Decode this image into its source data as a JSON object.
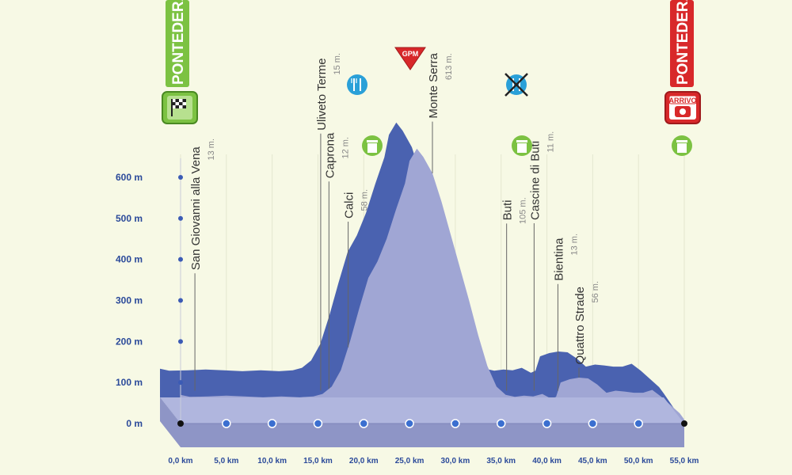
{
  "chart_data": {
    "type": "area",
    "title": "",
    "xlabel": "",
    "ylabel": "",
    "xlim": [
      0,
      55
    ],
    "ylim": [
      0,
      600
    ],
    "x_tick_labels": [
      "0,0 km",
      "5,0 km",
      "10,0 km",
      "15,0 km",
      "20,0 km",
      "25,0 km",
      "30,0 km",
      "35,0 km",
      "40,0 km",
      "45,0 km",
      "50,0 km",
      "55,0 km"
    ],
    "y_tick_labels": [
      "0 m",
      "100 m",
      "200 m",
      "300 m",
      "400 m",
      "500 m",
      "600 m"
    ],
    "y_tick_values": [
      0,
      100,
      200,
      300,
      400,
      500,
      600
    ],
    "x_tick_values": [
      0,
      5,
      10,
      15,
      20,
      25,
      30,
      35,
      40,
      45,
      50,
      55
    ],
    "series": [
      {
        "x": [
          0,
          1,
          3,
          5,
          7,
          9,
          11,
          13,
          14.5,
          15.5,
          16.5,
          17.5,
          18.5,
          19.5,
          20.5,
          21.5,
          22.5,
          23.5,
          24.5,
          25,
          25.8,
          26.5,
          27.5,
          28.5,
          29.5,
          30.5,
          31.5,
          32.5,
          33.5,
          34.5,
          35.5,
          36.5,
          37.5,
          38.5,
          39.5,
          40.5,
          41,
          41.5,
          42.5,
          43.5,
          44.5,
          45.5,
          46.5,
          47.5,
          48.5,
          49.5,
          50.5,
          51.5,
          52.5,
          53.5,
          54.5,
          55
        ],
        "y": [
          70,
          65,
          66,
          68,
          66,
          64,
          66,
          64,
          66,
          72,
          90,
          130,
          200,
          280,
          355,
          395,
          450,
          520,
          585,
          640,
          670,
          650,
          610,
          540,
          460,
          380,
          300,
          215,
          140,
          90,
          70,
          65,
          68,
          66,
          72,
          60,
          65,
          100,
          108,
          112,
          110,
          95,
          75,
          80,
          78,
          75,
          75,
          82,
          65,
          45,
          25,
          10
        ]
      }
    ],
    "places": [
      {
        "name": "San Giovanni alla Vena",
        "alt": "13 m.",
        "km": 0.7
      },
      {
        "name": "Uliveto Terme",
        "alt": "15 m.",
        "km": 15.3
      },
      {
        "name": "Caprona",
        "alt": "12 m.",
        "km": 16.2
      },
      {
        "name": "Calci",
        "alt": "58 m.",
        "km": 18.3
      },
      {
        "name": "Monte Serra",
        "alt": "613 m.",
        "km": 27.5
      },
      {
        "name": "Buti",
        "alt": "105 m.",
        "km": 35.6
      },
      {
        "name": "Cascine di Buti",
        "alt": "11 m.",
        "km": 38.6
      },
      {
        "name": "Bientina",
        "alt": "13 m.",
        "km": 41.2
      },
      {
        "name": "Quattro Strade",
        "alt": "56 m.",
        "km": 43.5
      }
    ],
    "start_label": "PONTEDERA",
    "finish_label": "PONTEDERA",
    "gpm_label": "GPM",
    "arrivo_label": "ARRIVO",
    "colors": {
      "background": "#f7f9e5",
      "profile_front": "#a0a6d4",
      "profile_back": "#4a62b0",
      "floor": "#b0b6de",
      "floor_side": "#8e95c6",
      "start_flag": "#7cc242",
      "finish_flag": "#d8282a",
      "tick_text": "#2b4a9a",
      "feed_icon": "#2aa0d8",
      "waste_icon": "#7cc242"
    }
  }
}
